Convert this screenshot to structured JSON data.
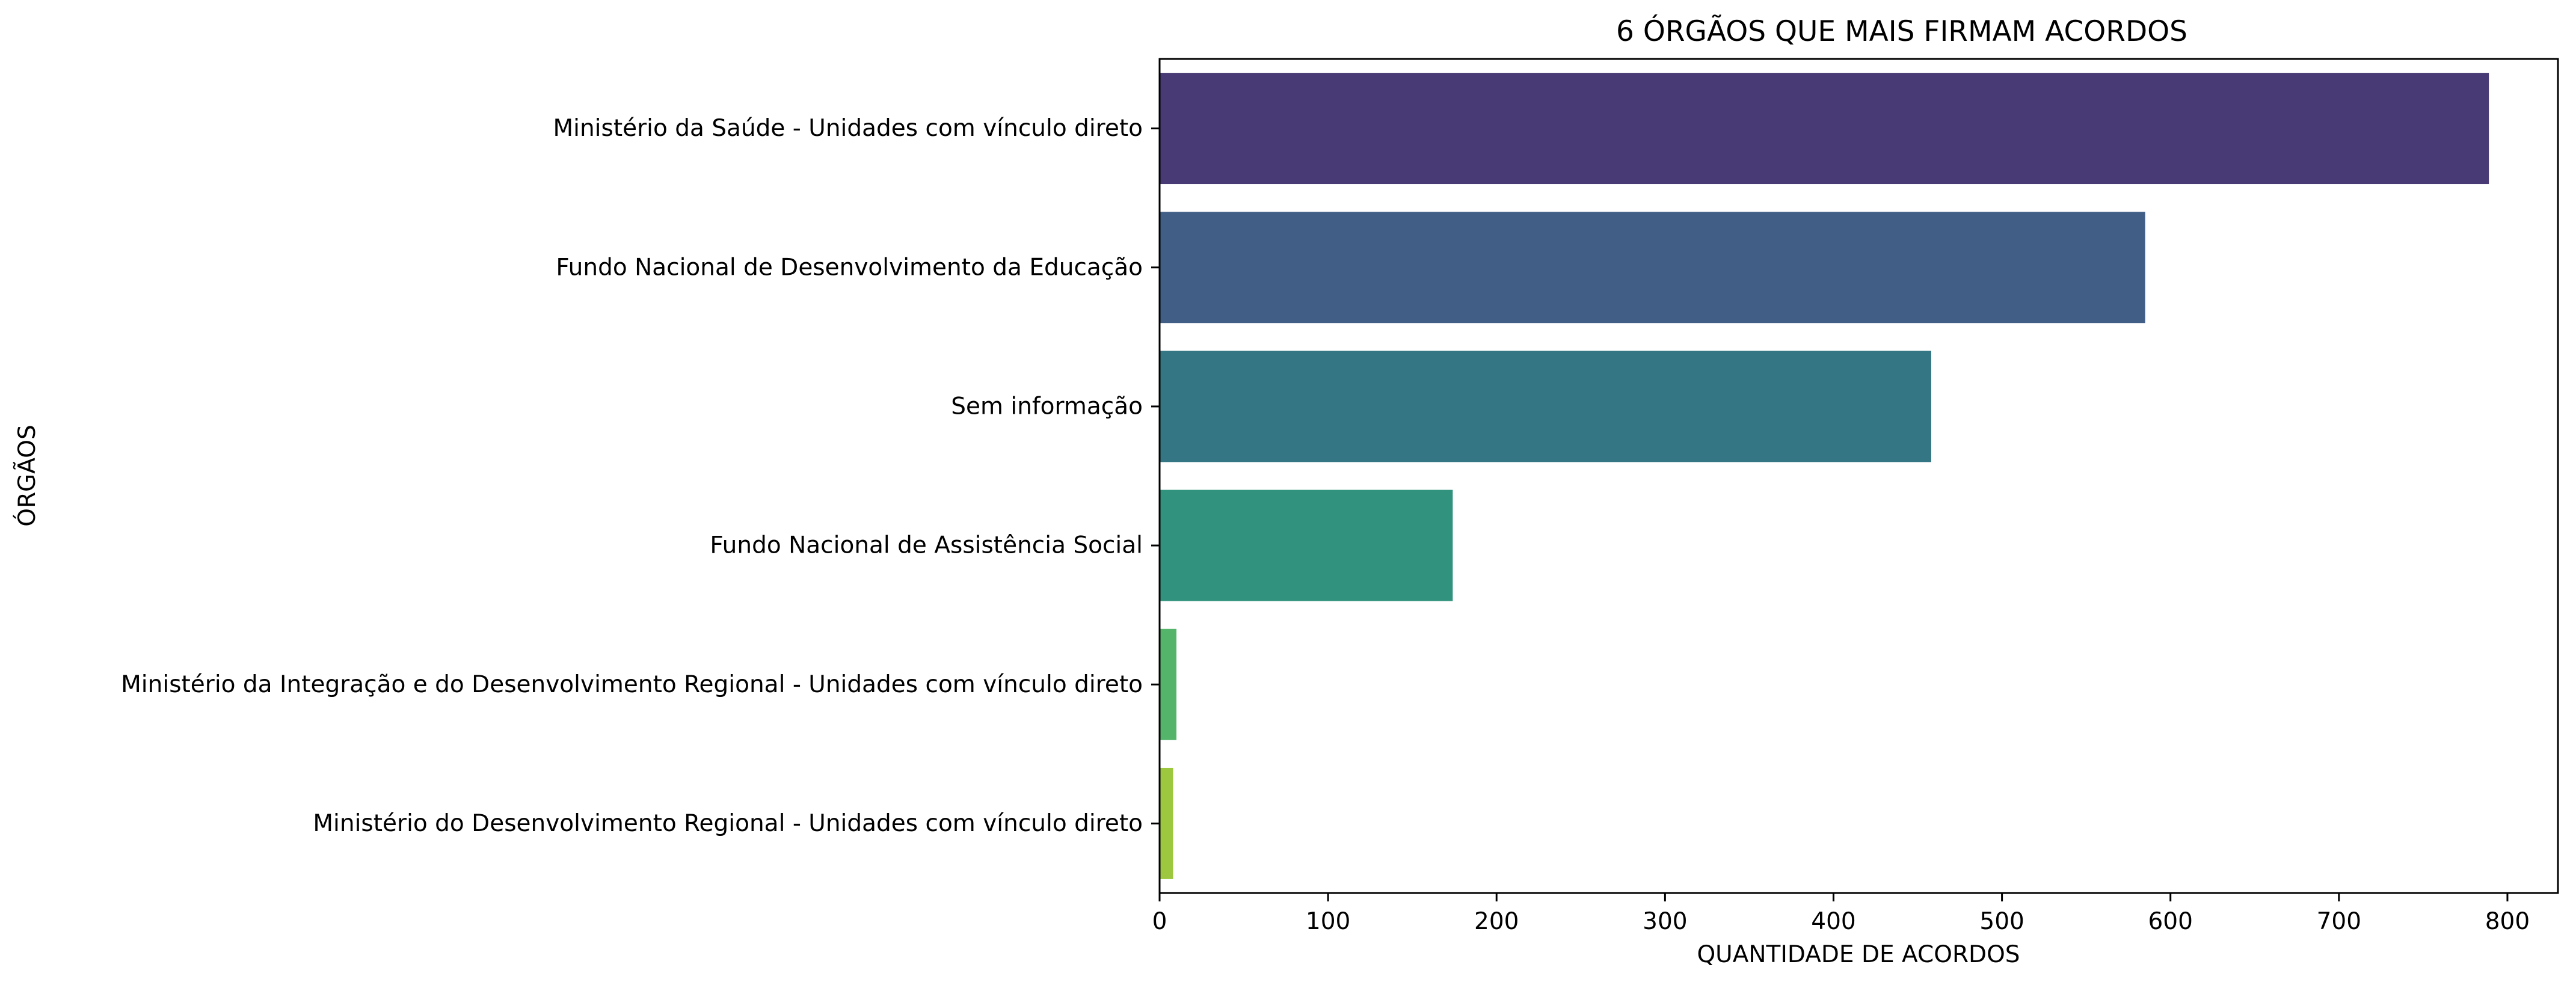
{
  "chart_data": {
    "type": "bar",
    "orientation": "horizontal",
    "title": "6 ÓRGÃOS QUE MAIS FIRMAM ACORDOS",
    "xlabel": "QUANTIDADE DE ACORDOS",
    "ylabel": "ÓRGÃOS",
    "xlim": [
      0,
      830
    ],
    "xticks": [
      0,
      100,
      200,
      300,
      400,
      500,
      600,
      700,
      800
    ],
    "grid": false,
    "legend": "none",
    "categories": [
      "Ministério da Saúde - Unidades com vínculo direto",
      "Fundo Nacional de Desenvolvimento da Educação",
      "Sem informação",
      "Fundo Nacional de Assistência Social",
      "Ministério da Integração e do Desenvolvimento Regional - Unidades com vínculo direto",
      "Ministério do Desenvolvimento Regional - Unidades com vínculo direto"
    ],
    "values": [
      789,
      585,
      458,
      174,
      10,
      8
    ],
    "colors": [
      "#483A75",
      "#415E86",
      "#347683",
      "#31937D",
      "#53B46A",
      "#9CC73E"
    ]
  }
}
